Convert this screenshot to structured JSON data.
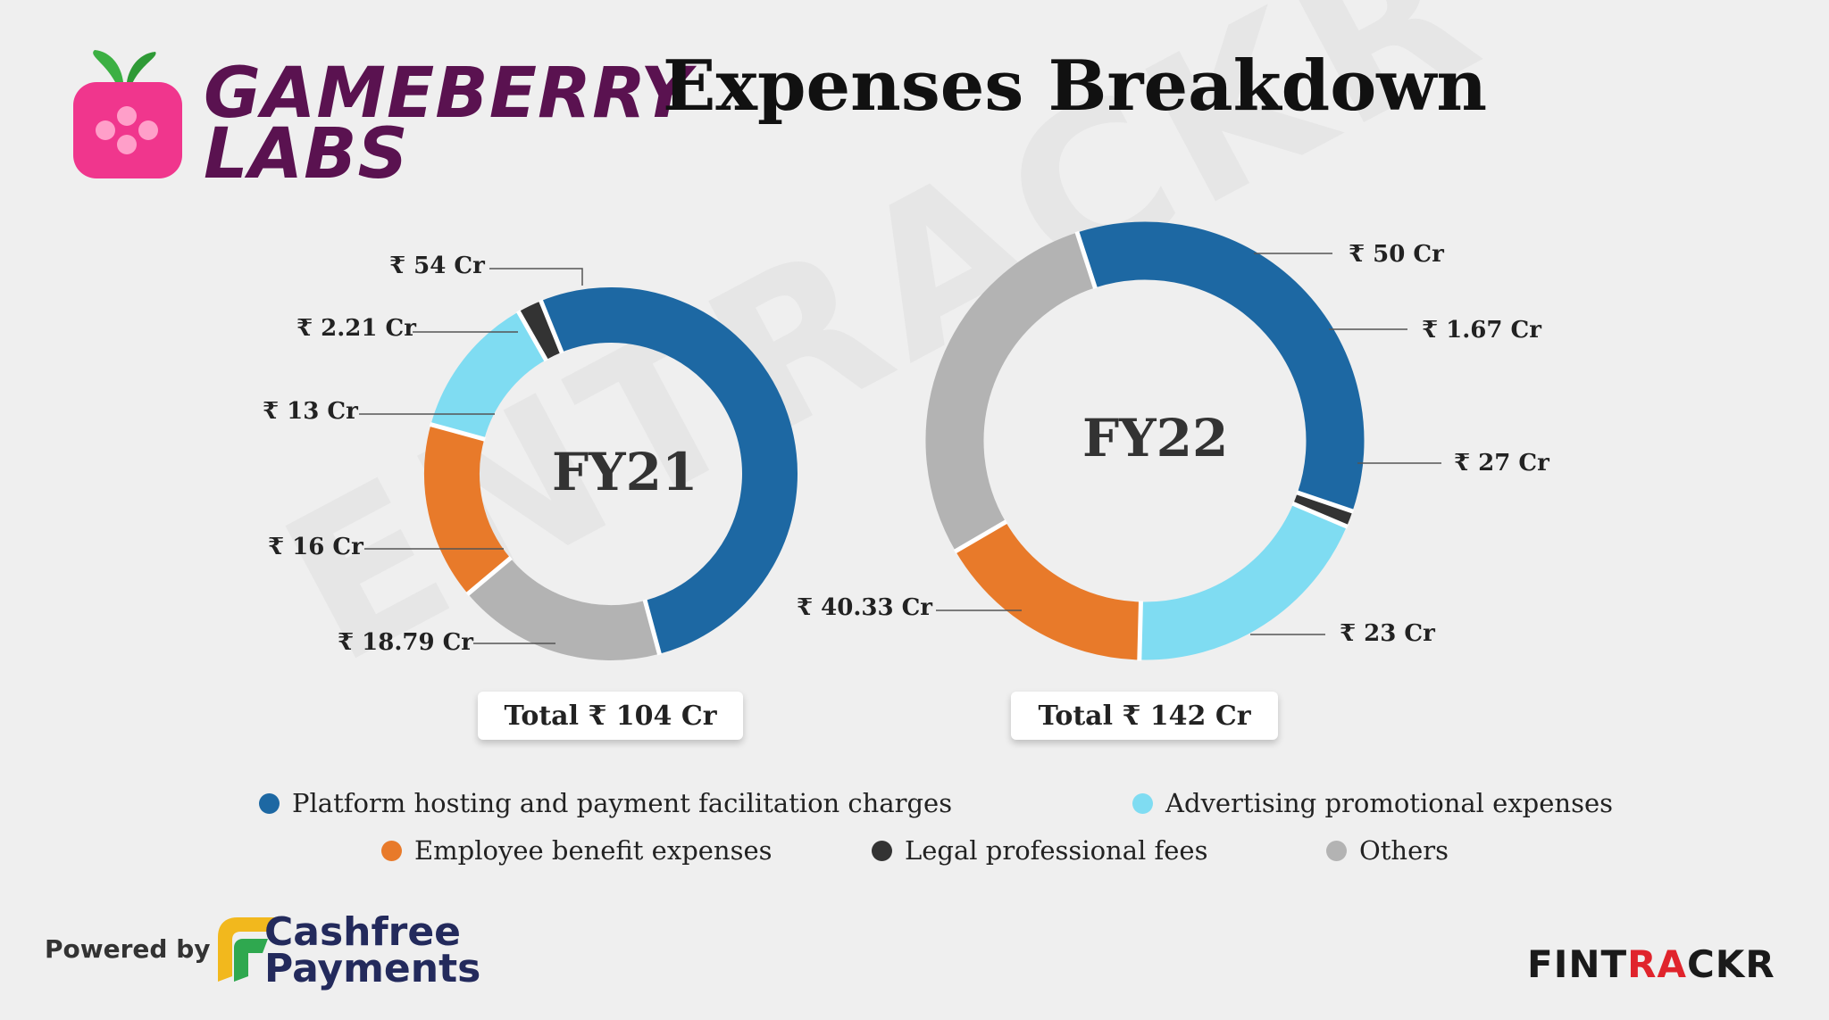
{
  "header": {
    "brand_line1": "GAMEBERRY",
    "brand_line2": "LABS",
    "title": "Expenses Breakdown"
  },
  "watermark": "ENTRACKR",
  "colors": {
    "platform": "#1d68a3",
    "advertising": "#7fdcf2",
    "employee": "#e87a2a",
    "legal": "#333333",
    "others": "#b3b3b3",
    "brand": "#5a1250",
    "logo_pink": "#f0368d"
  },
  "chart_data": [
    {
      "type": "pie",
      "donut": true,
      "center_label": "FY21",
      "total_label": "Total ₹ 104 Cr",
      "slices": [
        {
          "category": "Platform hosting and payment facilitation charges",
          "value": 54,
          "label": "₹ 54 Cr",
          "color": "#1d68a3"
        },
        {
          "category": "Others",
          "value": 18.79,
          "label": "₹ 18.79 Cr",
          "color": "#b3b3b3"
        },
        {
          "category": "Employee benefit expenses",
          "value": 16,
          "label": "₹ 16 Cr",
          "color": "#e87a2a"
        },
        {
          "category": "Advertising promotional expenses",
          "value": 13,
          "label": "₹ 13 Cr",
          "color": "#7fdcf2"
        },
        {
          "category": "Legal professional fees",
          "value": 2.21,
          "label": "₹ 2.21 Cr",
          "color": "#333333"
        }
      ]
    },
    {
      "type": "pie",
      "donut": true,
      "center_label": "FY22",
      "total_label": "Total ₹ 142 Cr",
      "slices": [
        {
          "category": "Platform hosting and payment facilitation charges",
          "value": 50,
          "label": "₹ 50 Cr",
          "color": "#1d68a3"
        },
        {
          "category": "Legal professional fees",
          "value": 1.67,
          "label": "₹ 1.67 Cr",
          "color": "#333333"
        },
        {
          "category": "Advertising promotional expenses",
          "value": 27,
          "label": "₹ 27 Cr",
          "color": "#7fdcf2"
        },
        {
          "category": "Employee benefit expenses",
          "value": 23,
          "label": "₹ 23 Cr",
          "color": "#e87a2a"
        },
        {
          "category": "Others",
          "value": 40.33,
          "label": "₹ 40.33 Cr",
          "color": "#b3b3b3"
        }
      ]
    }
  ],
  "legend": [
    {
      "label": "Platform hosting and payment facilitation charges",
      "color": "#1d68a3"
    },
    {
      "label": "Advertising promotional expenses",
      "color": "#7fdcf2"
    },
    {
      "label": "Employee benefit expenses",
      "color": "#e87a2a"
    },
    {
      "label": "Legal professional fees",
      "color": "#333333"
    },
    {
      "label": "Others",
      "color": "#b3b3b3"
    }
  ],
  "footer": {
    "powered_by": "Powered by",
    "sponsor_line1": "Cashfree",
    "sponsor_line2": "Payments",
    "publisher_a": "FINT",
    "publisher_b": "R",
    "publisher_c": "A",
    "publisher_d": "CKR"
  }
}
